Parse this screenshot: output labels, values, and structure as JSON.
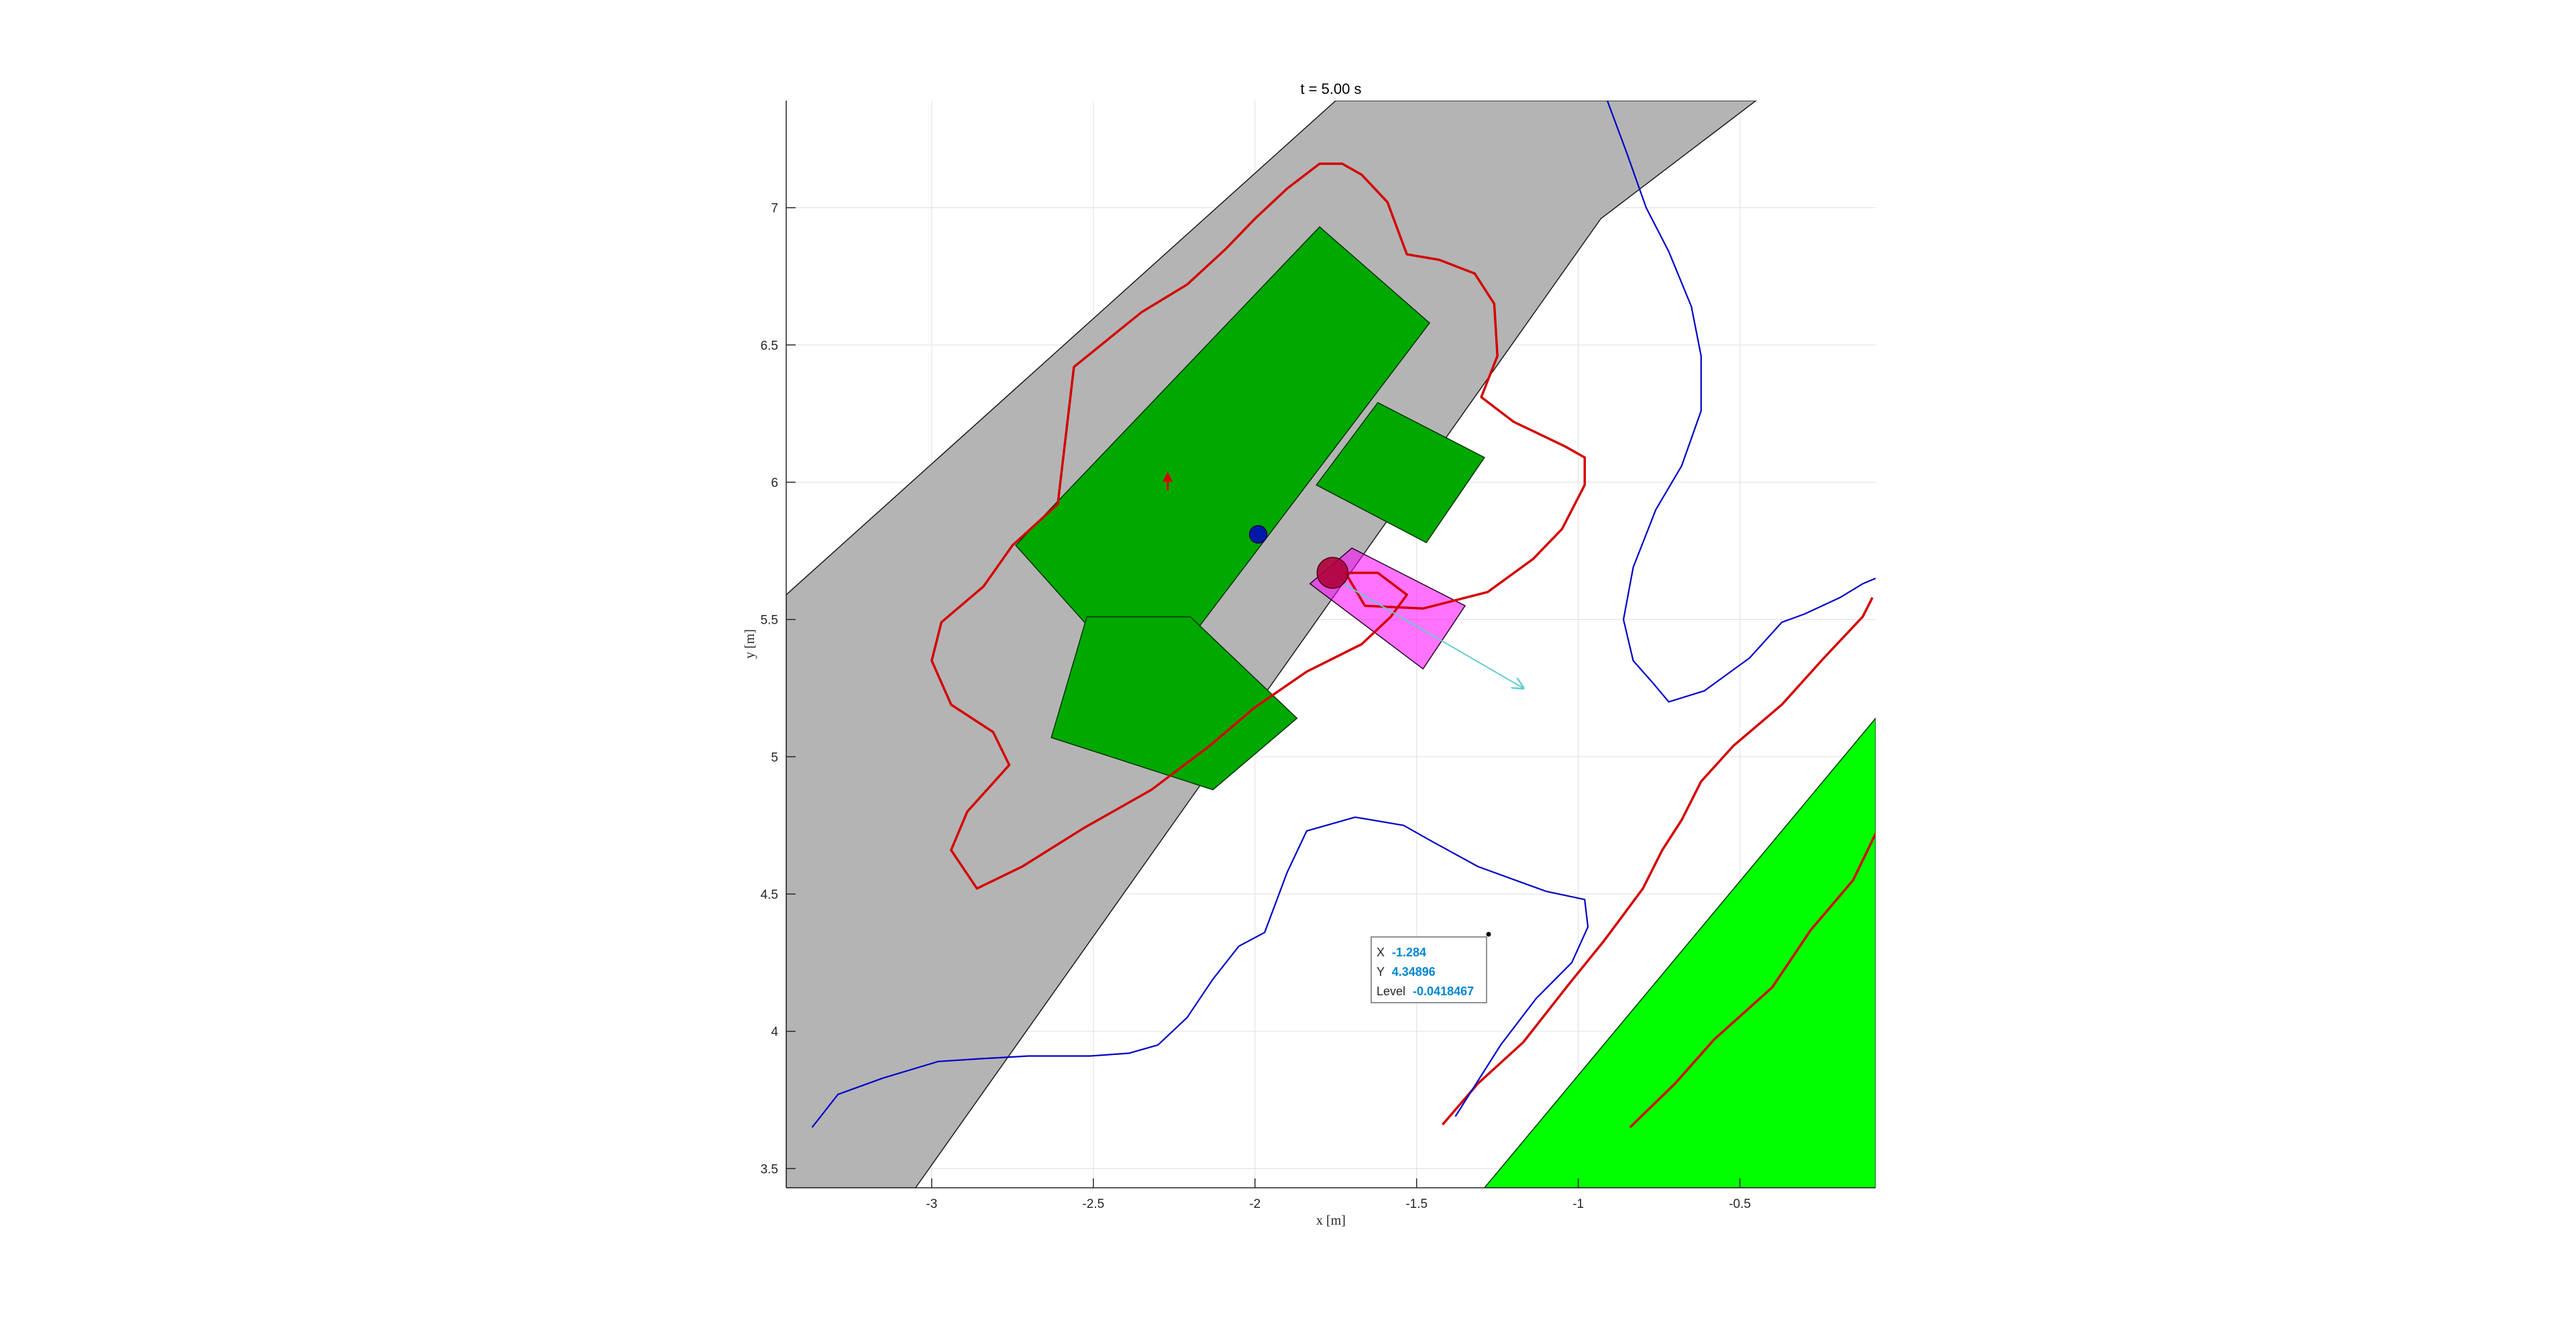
{
  "chart_data": {
    "type": "contour",
    "title": "t = 5.00 s",
    "xlabel": "x [m]",
    "ylabel": "y [m]",
    "xlim": [
      -3.45,
      -0.08
    ],
    "ylim": [
      3.43,
      7.39
    ],
    "xticks": [
      -3,
      -2.5,
      -2,
      -1.5,
      -1,
      -0.5
    ],
    "xtick_labels": [
      "-3",
      "-2.5",
      "-2",
      "-1.5",
      "-1",
      "-0.5"
    ],
    "yticks": [
      3.5,
      4,
      4.5,
      5,
      5.5,
      6,
      6.5,
      7
    ],
    "ytick_labels": [
      "3.5",
      "4",
      "4.5",
      "5",
      "5.5",
      "6",
      "6.5",
      "7"
    ],
    "grid": true,
    "colors": {
      "road": "#b4b4b4",
      "obstacle": "#00a800",
      "obstacle_bright": "#00ff00",
      "ego_vehicle": "#ff00ff",
      "contour_red": "#d40000",
      "contour_blue": "#0000c8",
      "velocity_arrow": "#66cccc",
      "marker_blue": "#0018a8",
      "marker_red": "#b0003a"
    },
    "regions": {
      "road_band": [
        [
          -1.75,
          7.39
        ],
        [
          -3.45,
          5.59
        ],
        [
          -3.45,
          3.43
        ],
        [
          -3.05,
          3.43
        ],
        [
          -0.93,
          6.96
        ],
        [
          -0.45,
          7.39
        ]
      ],
      "green_polygons": [
        [
          [
            -2.74,
            5.77
          ],
          [
            -1.8,
            6.93
          ],
          [
            -1.46,
            6.58
          ],
          [
            -2.33,
            5.23
          ]
        ],
        [
          [
            -1.62,
            6.29
          ],
          [
            -1.81,
            5.99
          ],
          [
            -1.47,
            5.78
          ],
          [
            -1.29,
            6.09
          ]
        ],
        [
          [
            -2.63,
            5.07
          ],
          [
            -2.52,
            5.51
          ],
          [
            -2.2,
            5.51
          ],
          [
            -1.87,
            5.14
          ],
          [
            -2.13,
            4.88
          ]
        ],
        [
          [
            -1.29,
            3.43
          ],
          [
            -0.08,
            3.43
          ],
          [
            -0.08,
            5.14
          ]
        ]
      ],
      "magenta_rect": [
        [
          -1.83,
          5.63
        ],
        [
          -1.7,
          5.76
        ],
        [
          -1.35,
          5.55
        ],
        [
          -1.48,
          5.32
        ]
      ],
      "velocity_arrow": [
        [
          -1.77,
          5.66
        ],
        [
          -1.17,
          5.25
        ]
      ],
      "marker_blue": [
        -1.99,
        5.81
      ],
      "marker_red": [
        -1.76,
        5.67
      ],
      "small_arrow": [
        [
          -2.27,
          5.97
        ],
        [
          -2.27,
          6.02
        ]
      ]
    },
    "series": [
      {
        "name": "",
        "color": "#d40000",
        "closed": true,
        "x": [
          -2.56,
          -2.35,
          -2.21,
          -2.09,
          -2.0,
          -1.9,
          -1.8,
          -1.73,
          -1.67,
          -1.59,
          -1.53,
          -1.43,
          -1.32,
          -1.26,
          -1.25,
          -1.3,
          -1.2,
          -1.04,
          -0.98,
          -0.98,
          -1.05,
          -1.14,
          -1.28,
          -1.48,
          -1.66,
          -1.72,
          -1.62,
          -1.53,
          -1.58,
          -1.67,
          -1.84,
          -2.0,
          -2.14,
          -2.32,
          -2.53,
          -2.72,
          -2.86,
          -2.94,
          -2.89,
          -2.76,
          -2.81,
          -2.94,
          -3.0,
          -2.97,
          -2.84,
          -2.75,
          -2.61,
          -2.56
        ],
        "y": [
          6.42,
          6.62,
          6.72,
          6.85,
          6.96,
          7.07,
          7.16,
          7.16,
          7.12,
          7.02,
          6.83,
          6.81,
          6.76,
          6.65,
          6.46,
          6.31,
          6.22,
          6.13,
          6.09,
          5.99,
          5.83,
          5.72,
          5.6,
          5.54,
          5.55,
          5.67,
          5.67,
          5.59,
          5.51,
          5.41,
          5.31,
          5.18,
          5.04,
          4.88,
          4.74,
          4.6,
          4.52,
          4.66,
          4.8,
          4.97,
          5.09,
          5.19,
          5.35,
          5.49,
          5.62,
          5.77,
          5.92,
          6.42
        ]
      },
      {
        "name": "",
        "color": "#d40000",
        "closed": false,
        "x": [
          -1.42,
          -1.31,
          -1.17,
          -1.03,
          -0.92,
          -0.8,
          -0.74,
          -0.68,
          -0.62,
          -0.52,
          -0.37,
          -0.24,
          -0.12,
          -0.09
        ],
        "y": [
          3.66,
          3.81,
          3.96,
          4.17,
          4.33,
          4.52,
          4.66,
          4.77,
          4.91,
          5.04,
          5.19,
          5.36,
          5.51,
          5.58
        ]
      },
      {
        "name": "",
        "color": "#d40000",
        "closed": false,
        "x": [
          -0.84,
          -0.7,
          -0.58,
          -0.4,
          -0.28,
          -0.15,
          -0.08
        ],
        "y": [
          3.65,
          3.81,
          3.97,
          4.16,
          4.37,
          4.55,
          4.72
        ]
      },
      {
        "name": "",
        "color": "#0000c8",
        "closed": false,
        "x": [
          -3.37,
          -3.29,
          -3.15,
          -2.98,
          -2.85,
          -2.7,
          -2.51,
          -2.39,
          -2.3,
          -2.21,
          -2.13,
          -2.05,
          -1.97,
          -1.9,
          -1.84,
          -1.69,
          -1.54,
          -1.45,
          -1.31,
          -1.1,
          -0.98,
          -0.97,
          -1.02,
          -1.13,
          -1.24,
          -1.38
        ],
        "y": [
          3.65,
          3.77,
          3.83,
          3.89,
          3.9,
          3.91,
          3.91,
          3.92,
          3.95,
          4.05,
          4.19,
          4.31,
          4.36,
          4.58,
          4.73,
          4.78,
          4.75,
          4.69,
          4.6,
          4.51,
          4.48,
          4.38,
          4.25,
          4.12,
          3.95,
          3.69
        ]
      },
      {
        "name": "",
        "color": "#0000c8",
        "closed": false,
        "x": [
          -0.91,
          -0.85,
          -0.79,
          -0.72,
          -0.65,
          -0.62,
          -0.62,
          -0.68,
          -0.76,
          -0.83,
          -0.86,
          -0.83,
          -0.77,
          -0.72,
          -0.61,
          -0.47,
          -0.37,
          -0.3,
          -0.19,
          -0.12,
          -0.08
        ],
        "y": [
          7.39,
          7.2,
          7.0,
          6.84,
          6.64,
          6.46,
          6.26,
          6.06,
          5.9,
          5.69,
          5.5,
          5.35,
          5.27,
          5.2,
          5.24,
          5.36,
          5.49,
          5.52,
          5.58,
          5.63,
          5.65
        ]
      }
    ],
    "datatip": {
      "x_label": "X",
      "x_value": "-1.284",
      "y_label": "Y",
      "y_value": "4.34896",
      "level_label": "Level",
      "level_value": "-0.0418467",
      "anchor": [
        -1.284,
        4.34896
      ]
    }
  }
}
